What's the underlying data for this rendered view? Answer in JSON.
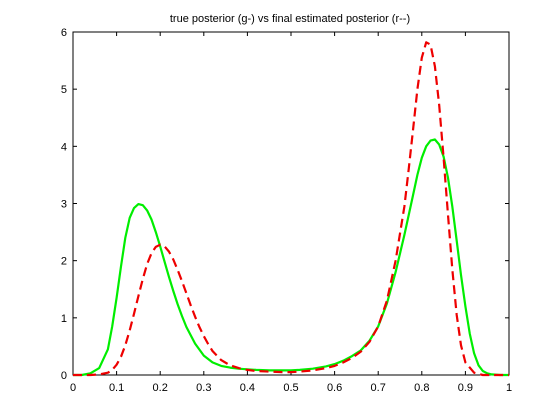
{
  "chart_data": {
    "type": "line",
    "title": "true posterior (g-) vs final estimated posterior (r--)",
    "xlabel": "",
    "ylabel": "",
    "xlim": [
      0,
      1
    ],
    "ylim": [
      0,
      6
    ],
    "xticks": [
      0,
      0.1,
      0.2,
      0.3,
      0.4,
      0.5,
      0.6,
      0.7,
      0.8,
      0.9,
      1
    ],
    "xtick_labels": [
      "0",
      "0.1",
      "0.2",
      "0.3",
      "0.4",
      "0.5",
      "0.6",
      "0.7",
      "0.8",
      "0.9",
      "1"
    ],
    "yticks": [
      0,
      1,
      2,
      3,
      4,
      5,
      6
    ],
    "ytick_labels": [
      "0",
      "1",
      "2",
      "3",
      "4",
      "5",
      "6"
    ],
    "grid": false,
    "legend": "none",
    "series": [
      {
        "color": "#00ee00",
        "line_style": "solid",
        "x": [
          0.0,
          0.02,
          0.04,
          0.06,
          0.08,
          0.09,
          0.1,
          0.11,
          0.12,
          0.13,
          0.14,
          0.15,
          0.16,
          0.17,
          0.18,
          0.19,
          0.2,
          0.21,
          0.22,
          0.23,
          0.24,
          0.25,
          0.26,
          0.28,
          0.3,
          0.32,
          0.34,
          0.36,
          0.38,
          0.4,
          0.42,
          0.45,
          0.48,
          0.5,
          0.52,
          0.55,
          0.58,
          0.6,
          0.62,
          0.64,
          0.66,
          0.68,
          0.7,
          0.72,
          0.74,
          0.76,
          0.78,
          0.79,
          0.8,
          0.81,
          0.82,
          0.83,
          0.84,
          0.85,
          0.86,
          0.87,
          0.88,
          0.89,
          0.9,
          0.91,
          0.92,
          0.93,
          0.94,
          0.95,
          0.96,
          0.98,
          1.0
        ],
        "y": [
          0.0,
          0.0,
          0.03,
          0.12,
          0.45,
          0.85,
          1.35,
          1.9,
          2.4,
          2.75,
          2.92,
          2.99,
          2.97,
          2.88,
          2.72,
          2.5,
          2.25,
          1.98,
          1.72,
          1.47,
          1.24,
          1.03,
          0.84,
          0.55,
          0.34,
          0.22,
          0.16,
          0.13,
          0.11,
          0.1,
          0.09,
          0.08,
          0.08,
          0.08,
          0.09,
          0.11,
          0.15,
          0.19,
          0.25,
          0.33,
          0.43,
          0.6,
          0.85,
          1.25,
          1.8,
          2.45,
          3.15,
          3.5,
          3.8,
          4.0,
          4.1,
          4.12,
          4.03,
          3.82,
          3.45,
          2.95,
          2.35,
          1.75,
          1.2,
          0.72,
          0.38,
          0.17,
          0.07,
          0.03,
          0.01,
          0.0,
          0.0
        ]
      },
      {
        "color": "#ee0000",
        "line_style": "dashed",
        "x": [
          0.0,
          0.04,
          0.06,
          0.08,
          0.09,
          0.1,
          0.11,
          0.12,
          0.13,
          0.14,
          0.15,
          0.16,
          0.17,
          0.18,
          0.19,
          0.2,
          0.21,
          0.22,
          0.23,
          0.24,
          0.25,
          0.26,
          0.27,
          0.28,
          0.29,
          0.3,
          0.31,
          0.32,
          0.34,
          0.36,
          0.38,
          0.4,
          0.42,
          0.45,
          0.48,
          0.5,
          0.52,
          0.55,
          0.58,
          0.6,
          0.62,
          0.64,
          0.66,
          0.68,
          0.7,
          0.72,
          0.74,
          0.76,
          0.77,
          0.78,
          0.79,
          0.8,
          0.81,
          0.82,
          0.83,
          0.84,
          0.85,
          0.86,
          0.87,
          0.88,
          0.89,
          0.9,
          0.92,
          0.94,
          0.96,
          1.0
        ],
        "y": [
          0.0,
          0.0,
          0.01,
          0.04,
          0.09,
          0.18,
          0.32,
          0.52,
          0.78,
          1.07,
          1.38,
          1.68,
          1.94,
          2.13,
          2.24,
          2.28,
          2.25,
          2.16,
          2.02,
          1.84,
          1.64,
          1.43,
          1.22,
          1.02,
          0.84,
          0.68,
          0.54,
          0.42,
          0.26,
          0.17,
          0.12,
          0.09,
          0.07,
          0.06,
          0.05,
          0.05,
          0.06,
          0.08,
          0.12,
          0.16,
          0.22,
          0.3,
          0.41,
          0.58,
          0.85,
          1.3,
          2.0,
          2.95,
          3.6,
          4.3,
          5.0,
          5.55,
          5.82,
          5.78,
          5.4,
          4.72,
          3.8,
          2.8,
          1.85,
          1.05,
          0.52,
          0.22,
          0.04,
          0.0,
          0.0,
          0.0
        ]
      }
    ]
  }
}
